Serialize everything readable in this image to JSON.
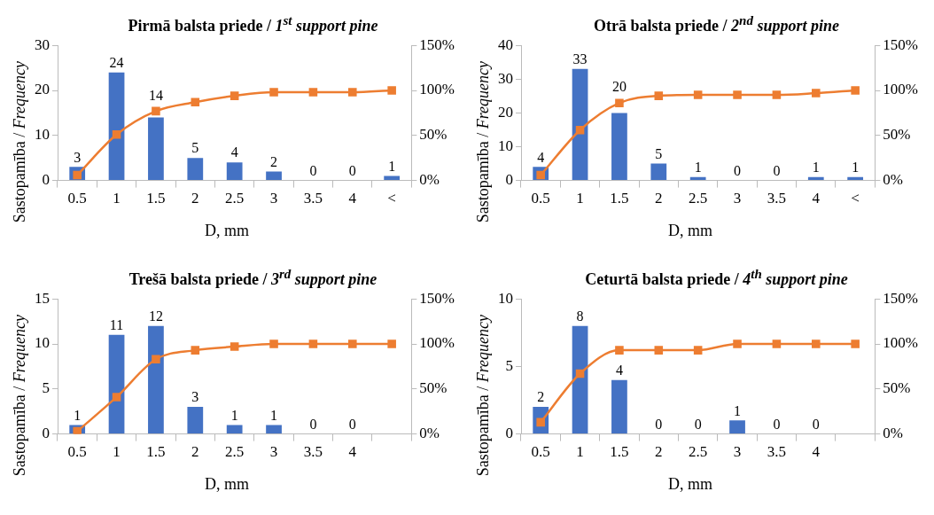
{
  "chart_data": [
    {
      "type": "bar",
      "title": "Pirmā balsta priede / 1$^{st}$ support pine",
      "xlabel": "D, mm",
      "ylabel": "Sastopamība / Frequency",
      "categories": [
        "0.5",
        "1",
        "1.5",
        "2",
        "2.5",
        "3",
        "3.5",
        "4",
        "<"
      ],
      "series": [
        {
          "color": "#4472c4",
          "values": [
            3,
            24,
            14,
            5,
            4,
            2,
            0,
            0,
            1
          ],
          "value_labels": [
            "3",
            "24",
            "14",
            "5",
            "4",
            "2",
            "0",
            "0",
            "1"
          ]
        },
        {
          "type": "line",
          "axis": "y2",
          "color": "#ed7d31",
          "marker": "square",
          "values": [
            6,
            51,
            77,
            87,
            94,
            98,
            98,
            98,
            100
          ]
        }
      ],
      "ylim": [
        0,
        30
      ],
      "yticks": [
        0,
        10,
        20,
        30
      ],
      "y2lim": [
        0,
        150
      ],
      "y2ticks": [
        {
          "value": 0,
          "label": "0%"
        },
        {
          "value": 50,
          "label": "50%"
        },
        {
          "value": 100,
          "label": "100%"
        },
        {
          "value": 150,
          "label": "150%"
        }
      ],
      "grid": false
    },
    {
      "type": "bar",
      "title": "Otrā balsta priede / 2$^{nd}$ support pine",
      "xlabel": "D, mm",
      "ylabel": "Sastopamība / Frequency",
      "categories": [
        "0.5",
        "1",
        "1.5",
        "2",
        "2.5",
        "3",
        "3.5",
        "4",
        "<"
      ],
      "series": [
        {
          "color": "#4472c4",
          "values": [
            4,
            33,
            20,
            5,
            1,
            0,
            0,
            1,
            1
          ],
          "value_labels": [
            "4",
            "33",
            "20",
            "5",
            "1",
            "0",
            "0",
            "1",
            "1"
          ]
        },
        {
          "type": "line",
          "axis": "y2",
          "color": "#ed7d31",
          "marker": "square",
          "values": [
            6,
            56,
            86,
            94,
            95,
            95,
            95,
            97,
            100
          ]
        }
      ],
      "ylim": [
        0,
        40
      ],
      "yticks": [
        0,
        10,
        20,
        30,
        40
      ],
      "y2lim": [
        0,
        150
      ],
      "y2ticks": [
        {
          "value": 0,
          "label": "0%"
        },
        {
          "value": 50,
          "label": "50%"
        },
        {
          "value": 100,
          "label": "100%"
        },
        {
          "value": 150,
          "label": "150%"
        }
      ],
      "grid": false
    },
    {
      "type": "bar",
      "title": "Trešā balsta priede / 3$^{rd}$ support pine",
      "xlabel": "D, mm",
      "ylabel": "Sastopamība / Frequency",
      "categories": [
        "0.5",
        "1",
        "1.5",
        "2",
        "2.5",
        "3",
        "3.5",
        "4",
        null
      ],
      "series": [
        {
          "color": "#4472c4",
          "values": [
            1,
            11,
            12,
            3,
            1,
            1,
            0,
            0,
            null
          ],
          "value_labels": [
            "1",
            "11",
            "12",
            "3",
            "1",
            "1",
            "0",
            "0",
            null
          ]
        },
        {
          "type": "line",
          "axis": "y2",
          "color": "#ed7d31",
          "marker": "square",
          "values": [
            3,
            41,
            83,
            93,
            97,
            100,
            100,
            100,
            100
          ]
        }
      ],
      "ylim": [
        0,
        15
      ],
      "yticks": [
        0,
        5,
        10,
        15
      ],
      "y2lim": [
        0,
        150
      ],
      "y2ticks": [
        {
          "value": 0,
          "label": "0%"
        },
        {
          "value": 50,
          "label": "50%"
        },
        {
          "value": 100,
          "label": "100%"
        },
        {
          "value": 150,
          "label": "150%"
        }
      ],
      "grid": false
    },
    {
      "type": "bar",
      "title": "Ceturtā balsta priede / 4$^{th}$ support pine",
      "xlabel": "D, mm",
      "ylabel": "Sastopamība / Frequency",
      "categories": [
        "0.5",
        "1",
        "1.5",
        "2",
        "2.5",
        "3",
        "3.5",
        "4",
        null
      ],
      "series": [
        {
          "color": "#4472c4",
          "values": [
            2,
            8,
            4,
            0,
            0,
            1,
            0,
            0,
            null
          ],
          "value_labels": [
            "2",
            "8",
            "4",
            "0",
            "0",
            "1",
            "0",
            "0",
            null
          ]
        },
        {
          "type": "line",
          "axis": "y2",
          "color": "#ed7d31",
          "marker": "square",
          "values": [
            13,
            67,
            93,
            93,
            93,
            100,
            100,
            100,
            100
          ]
        }
      ],
      "ylim": [
        0,
        10
      ],
      "yticks": [
        0,
        5,
        10
      ],
      "y2lim": [
        0,
        150
      ],
      "y2ticks": [
        {
          "value": 0,
          "label": "0%"
        },
        {
          "value": 50,
          "label": "50%"
        },
        {
          "value": 100,
          "label": "100%"
        },
        {
          "value": 150,
          "label": "150%"
        }
      ],
      "grid": false
    }
  ]
}
